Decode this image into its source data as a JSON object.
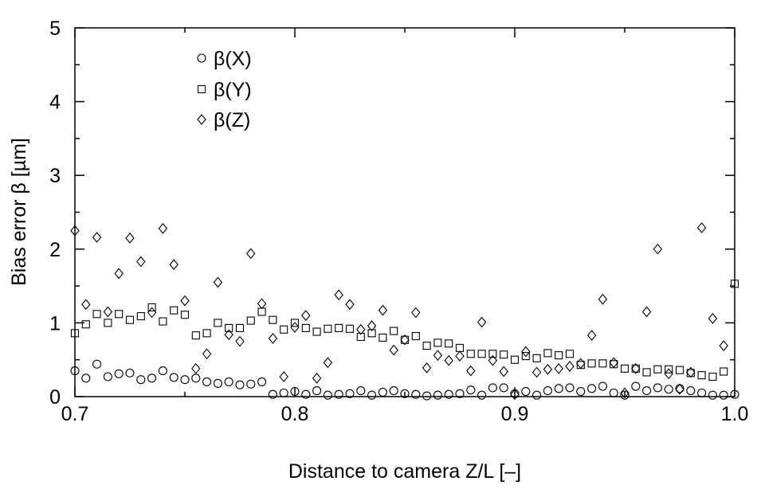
{
  "chart_data": {
    "type": "scatter",
    "title": "",
    "xlabel": "Distance to camera Z/L [–]",
    "ylabel": "Bias error β [µm]",
    "xlim": [
      0.7,
      1.0
    ],
    "ylim": [
      0,
      5
    ],
    "xticks": [
      0.7,
      0.8,
      0.9,
      1.0
    ],
    "xtick_labels": [
      "0.7",
      "0.8",
      "0.9",
      "1.0"
    ],
    "yticks": [
      0,
      1,
      2,
      3,
      4,
      5
    ],
    "ytick_labels": [
      "0",
      "1",
      "2",
      "3",
      "4",
      "5"
    ],
    "grid": false,
    "legend_position": "top-left",
    "series": [
      {
        "name": "β(X)",
        "marker": "circle",
        "x": [
          0.7,
          0.705,
          0.71,
          0.715,
          0.72,
          0.725,
          0.73,
          0.735,
          0.74,
          0.745,
          0.75,
          0.755,
          0.76,
          0.765,
          0.77,
          0.775,
          0.78,
          0.785,
          0.79,
          0.795,
          0.8,
          0.805,
          0.81,
          0.815,
          0.82,
          0.825,
          0.83,
          0.835,
          0.84,
          0.845,
          0.85,
          0.855,
          0.86,
          0.865,
          0.87,
          0.875,
          0.88,
          0.885,
          0.89,
          0.895,
          0.9,
          0.905,
          0.91,
          0.915,
          0.92,
          0.925,
          0.93,
          0.935,
          0.94,
          0.945,
          0.95,
          0.955,
          0.96,
          0.965,
          0.97,
          0.975,
          0.98,
          0.985,
          0.99,
          0.995,
          1.0
        ],
        "y": [
          0.35,
          0.25,
          0.44,
          0.27,
          0.31,
          0.32,
          0.23,
          0.25,
          0.35,
          0.26,
          0.23,
          0.25,
          0.2,
          0.18,
          0.2,
          0.16,
          0.17,
          0.2,
          0.03,
          0.05,
          0.07,
          0.03,
          0.08,
          0.02,
          0.03,
          0.04,
          0.08,
          0.02,
          0.06,
          0.08,
          0.04,
          0.03,
          0.01,
          0.02,
          0.03,
          0.04,
          0.09,
          0.02,
          0.12,
          0.12,
          0.04,
          0.07,
          0.02,
          0.08,
          0.11,
          0.12,
          0.07,
          0.11,
          0.14,
          0.05,
          0.02,
          0.14,
          0.08,
          0.12,
          0.1,
          0.11,
          0.08,
          0.05,
          0.02,
          0.02,
          0.03
        ]
      },
      {
        "name": "β(Y)",
        "marker": "square",
        "x": [
          0.7,
          0.705,
          0.71,
          0.715,
          0.72,
          0.725,
          0.73,
          0.735,
          0.74,
          0.745,
          0.75,
          0.755,
          0.76,
          0.765,
          0.77,
          0.775,
          0.78,
          0.785,
          0.79,
          0.795,
          0.8,
          0.805,
          0.81,
          0.815,
          0.82,
          0.825,
          0.83,
          0.835,
          0.84,
          0.845,
          0.85,
          0.855,
          0.86,
          0.865,
          0.87,
          0.875,
          0.88,
          0.885,
          0.89,
          0.895,
          0.9,
          0.905,
          0.91,
          0.915,
          0.92,
          0.925,
          0.93,
          0.935,
          0.94,
          0.945,
          0.95,
          0.955,
          0.96,
          0.965,
          0.97,
          0.975,
          0.98,
          0.985,
          0.99,
          0.995,
          1.0
        ],
        "y": [
          0.86,
          0.98,
          1.12,
          1.0,
          1.12,
          1.04,
          1.09,
          1.21,
          1.02,
          1.17,
          1.11,
          0.83,
          0.86,
          1.0,
          0.93,
          0.93,
          1.03,
          1.15,
          1.04,
          0.91,
          1.0,
          0.93,
          0.88,
          0.92,
          0.93,
          0.92,
          0.81,
          0.86,
          0.8,
          0.89,
          0.77,
          0.82,
          0.69,
          0.73,
          0.72,
          0.66,
          0.58,
          0.58,
          0.58,
          0.57,
          0.5,
          0.55,
          0.52,
          0.59,
          0.56,
          0.58,
          0.43,
          0.45,
          0.45,
          0.44,
          0.38,
          0.38,
          0.33,
          0.37,
          0.37,
          0.36,
          0.32,
          0.29,
          0.27,
          0.34,
          1.53
        ]
      },
      {
        "name": "β(Z)",
        "marker": "diamond",
        "x": [
          0.7,
          0.705,
          0.71,
          0.715,
          0.72,
          0.725,
          0.73,
          0.735,
          0.74,
          0.745,
          0.75,
          0.755,
          0.76,
          0.765,
          0.77,
          0.775,
          0.78,
          0.785,
          0.79,
          0.795,
          0.8,
          0.805,
          0.81,
          0.815,
          0.82,
          0.825,
          0.83,
          0.835,
          0.84,
          0.845,
          0.85,
          0.855,
          0.86,
          0.865,
          0.87,
          0.875,
          0.88,
          0.885,
          0.89,
          0.895,
          0.9,
          0.905,
          0.91,
          0.915,
          0.92,
          0.925,
          0.93,
          0.935,
          0.94,
          0.945,
          0.95,
          0.955,
          0.96,
          0.965,
          0.97,
          0.975,
          0.98,
          0.985,
          0.99,
          0.995
        ],
        "y": [
          2.25,
          1.25,
          2.16,
          1.15,
          1.67,
          2.15,
          1.83,
          1.14,
          2.28,
          1.79,
          1.3,
          0.38,
          0.58,
          1.55,
          0.84,
          0.75,
          1.94,
          1.26,
          0.79,
          0.27,
          0.94,
          1.1,
          0.25,
          0.46,
          1.38,
          1.25,
          0.91,
          0.96,
          1.17,
          0.63,
          0.77,
          1.14,
          0.39,
          0.56,
          0.49,
          0.55,
          0.35,
          1.01,
          0.49,
          0.34,
          0.03,
          0.61,
          0.33,
          0.37,
          0.38,
          0.41,
          0.45,
          0.83,
          1.32,
          0.46,
          0.05,
          0.38,
          1.15,
          2.0,
          0.31,
          0.1,
          0.33,
          2.29,
          1.06,
          0.69
        ]
      }
    ]
  }
}
